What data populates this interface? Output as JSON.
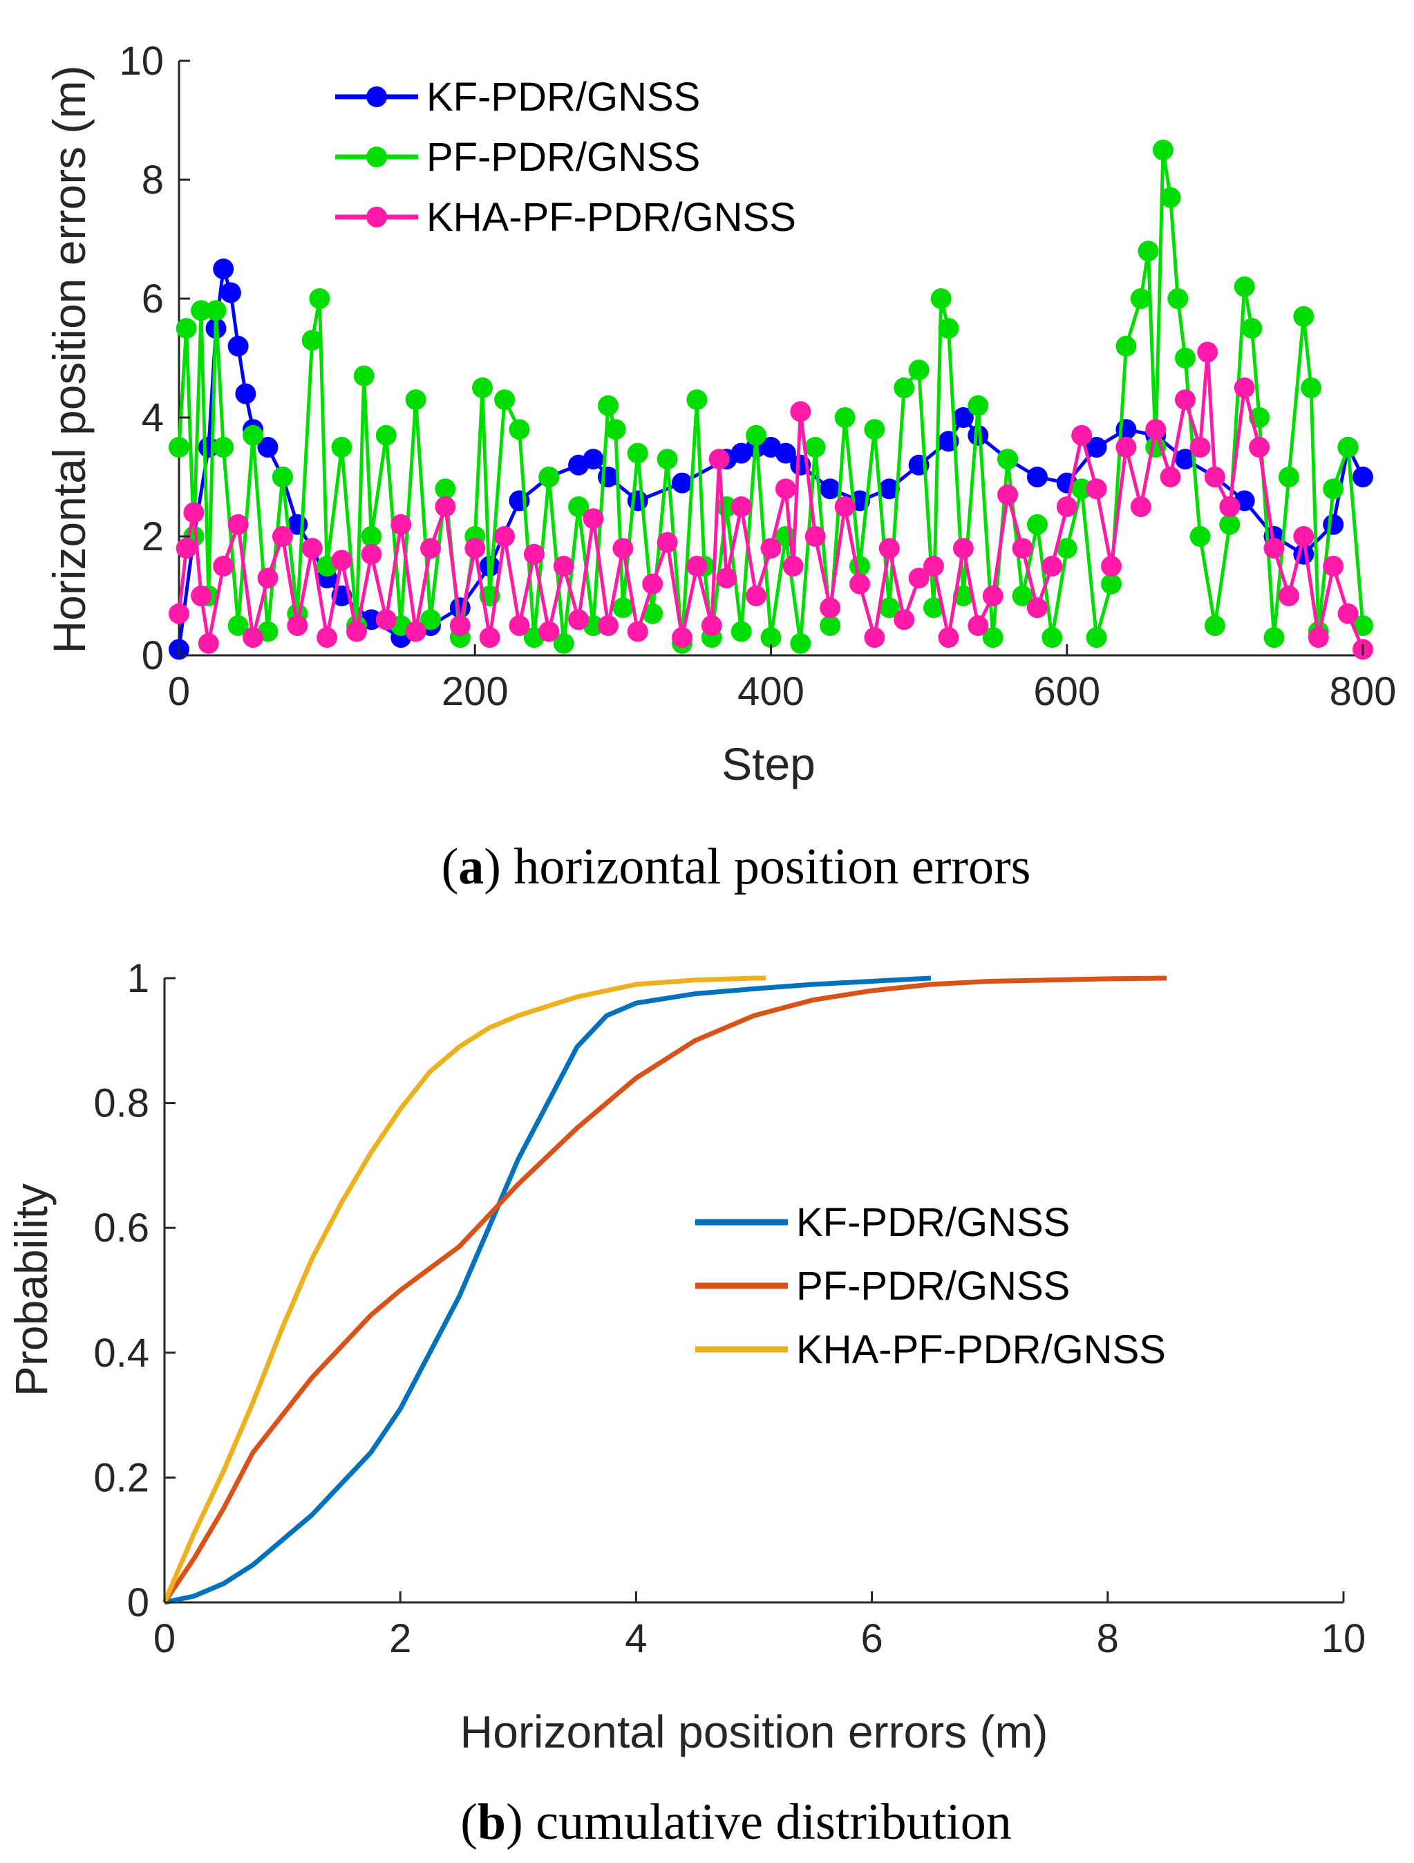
{
  "chart_data": [
    {
      "type": "line",
      "panel": "a",
      "caption_letter": "a",
      "caption_text": "horizontal position errors",
      "xlabel": "Step",
      "ylabel": "Horizontal position errors (m)",
      "xlim": [
        0,
        800
      ],
      "ylim": [
        0,
        10
      ],
      "xticks": [
        0,
        200,
        400,
        600,
        800
      ],
      "yticks": [
        0,
        2,
        4,
        6,
        8,
        10
      ],
      "grid": false,
      "legend_position": "top-left",
      "markers": "filled-circles",
      "series": [
        {
          "name": "KF-PDR/GNSS",
          "color": "#0000ff",
          "x": [
            0,
            10,
            20,
            25,
            30,
            35,
            40,
            45,
            50,
            60,
            70,
            80,
            90,
            100,
            110,
            130,
            150,
            170,
            190,
            210,
            230,
            250,
            270,
            280,
            290,
            310,
            340,
            370,
            380,
            390,
            400,
            410,
            420,
            440,
            460,
            480,
            500,
            520,
            530,
            540,
            560,
            580,
            600,
            620,
            640,
            660,
            680,
            700,
            720,
            740,
            760,
            780,
            790,
            800
          ],
          "values": [
            0.1,
            2.0,
            3.5,
            5.5,
            6.5,
            6.1,
            5.2,
            4.4,
            3.8,
            3.5,
            3.0,
            2.2,
            1.8,
            1.3,
            1.0,
            0.6,
            0.3,
            0.5,
            0.8,
            1.5,
            2.6,
            3.0,
            3.2,
            3.3,
            3.0,
            2.6,
            2.9,
            3.3,
            3.4,
            3.5,
            3.5,
            3.4,
            3.2,
            2.8,
            2.6,
            2.8,
            3.2,
            3.6,
            4.0,
            3.7,
            3.3,
            3.0,
            2.9,
            3.5,
            3.8,
            3.7,
            3.3,
            3.0,
            2.6,
            2.0,
            1.7,
            2.2,
            3.5,
            3.0
          ]
        },
        {
          "name": "PF-PDR/GNSS",
          "color": "#00dd00",
          "x": [
            0,
            5,
            10,
            15,
            20,
            25,
            30,
            40,
            50,
            60,
            70,
            80,
            90,
            95,
            100,
            110,
            120,
            125,
            130,
            140,
            150,
            160,
            170,
            180,
            190,
            200,
            205,
            210,
            220,
            230,
            240,
            250,
            260,
            270,
            280,
            290,
            295,
            300,
            310,
            320,
            330,
            340,
            350,
            355,
            360,
            370,
            380,
            390,
            400,
            410,
            420,
            430,
            440,
            450,
            460,
            470,
            480,
            490,
            500,
            510,
            515,
            520,
            530,
            540,
            550,
            560,
            570,
            580,
            590,
            600,
            610,
            620,
            630,
            640,
            650,
            655,
            660,
            665,
            670,
            675,
            680,
            690,
            700,
            710,
            720,
            725,
            730,
            740,
            750,
            760,
            765,
            770,
            780,
            790,
            800
          ],
          "values": [
            3.5,
            5.5,
            2.0,
            5.8,
            1.0,
            5.8,
            3.5,
            0.5,
            3.7,
            0.4,
            3.0,
            0.7,
            5.3,
            6.0,
            1.5,
            3.5,
            0.5,
            4.7,
            2.0,
            3.7,
            0.5,
            4.3,
            0.6,
            2.8,
            0.3,
            2.0,
            4.5,
            1.0,
            4.3,
            3.8,
            0.3,
            3.0,
            0.2,
            2.5,
            0.5,
            4.2,
            3.8,
            0.8,
            3.4,
            0.7,
            3.3,
            0.2,
            4.3,
            1.5,
            0.3,
            2.5,
            0.4,
            3.7,
            0.3,
            2.0,
            0.2,
            3.5,
            0.5,
            4.0,
            1.5,
            3.8,
            0.8,
            4.5,
            4.8,
            0.8,
            6.0,
            5.5,
            1.0,
            4.2,
            0.3,
            3.3,
            1.0,
            2.2,
            0.3,
            1.8,
            2.8,
            0.3,
            1.2,
            5.2,
            6.0,
            6.8,
            3.5,
            8.5,
            7.7,
            6.0,
            5.0,
            2.0,
            0.5,
            2.2,
            6.2,
            5.5,
            4.0,
            0.3,
            3.0,
            5.7,
            4.5,
            0.4,
            2.8,
            3.5,
            0.5
          ]
        },
        {
          "name": "KHA-PF-PDR/GNSS",
          "color": "#ff1aa8",
          "x": [
            0,
            5,
            10,
            15,
            20,
            30,
            40,
            50,
            60,
            70,
            80,
            90,
            100,
            110,
            120,
            130,
            140,
            150,
            160,
            170,
            180,
            190,
            200,
            210,
            220,
            230,
            240,
            250,
            260,
            270,
            280,
            290,
            300,
            310,
            320,
            330,
            340,
            350,
            360,
            365,
            370,
            380,
            390,
            400,
            410,
            415,
            420,
            430,
            440,
            450,
            460,
            470,
            480,
            490,
            500,
            510,
            520,
            530,
            540,
            550,
            560,
            570,
            580,
            590,
            600,
            610,
            620,
            630,
            640,
            650,
            660,
            670,
            680,
            690,
            695,
            700,
            710,
            720,
            730,
            740,
            750,
            760,
            770,
            780,
            790,
            800
          ],
          "values": [
            0.7,
            1.8,
            2.4,
            1.0,
            0.2,
            1.5,
            2.2,
            0.3,
            1.3,
            2.0,
            0.5,
            1.8,
            0.3,
            1.6,
            0.4,
            1.7,
            0.6,
            2.2,
            0.4,
            1.8,
            2.5,
            0.5,
            1.8,
            0.3,
            2.0,
            0.5,
            1.7,
            0.4,
            1.5,
            0.6,
            2.3,
            0.5,
            1.8,
            0.4,
            1.2,
            1.9,
            0.3,
            1.5,
            0.5,
            3.3,
            1.3,
            2.5,
            1.0,
            1.8,
            2.8,
            1.5,
            4.1,
            2.0,
            0.8,
            2.5,
            1.2,
            0.3,
            1.8,
            0.6,
            1.3,
            1.5,
            0.3,
            1.8,
            0.5,
            1.0,
            2.7,
            1.8,
            0.8,
            1.5,
            2.5,
            3.7,
            2.8,
            1.5,
            3.5,
            2.5,
            3.8,
            3.0,
            4.3,
            3.5,
            5.1,
            3.0,
            2.5,
            4.5,
            3.5,
            1.8,
            1.0,
            2.0,
            0.3,
            1.5,
            0.7,
            0.1
          ]
        }
      ]
    },
    {
      "type": "line",
      "panel": "b",
      "caption_letter": "b",
      "caption_text": "cumulative distribution",
      "xlabel": "Horizontal position errors (m)",
      "ylabel": "Probability",
      "xlim": [
        0,
        10
      ],
      "ylim": [
        0,
        1
      ],
      "xticks": [
        0,
        2,
        4,
        6,
        8,
        10
      ],
      "yticks": [
        0,
        0.2,
        0.4,
        0.6,
        0.8,
        1
      ],
      "grid": false,
      "legend_position": "right-center",
      "series": [
        {
          "name": "KF-PDR/GNSS",
          "color": "#0072bd",
          "x": [
            0,
            0.25,
            0.5,
            0.75,
            1.0,
            1.25,
            1.5,
            1.75,
            2.0,
            2.25,
            2.5,
            2.75,
            3.0,
            3.25,
            3.5,
            3.75,
            4.0,
            4.5,
            5.0,
            5.5,
            6.0,
            6.5
          ],
          "values": [
            0,
            0.01,
            0.03,
            0.06,
            0.1,
            0.14,
            0.19,
            0.24,
            0.31,
            0.4,
            0.49,
            0.6,
            0.71,
            0.8,
            0.89,
            0.94,
            0.96,
            0.975,
            0.983,
            0.99,
            0.995,
            1.0
          ]
        },
        {
          "name": "PF-PDR/GNSS",
          "color": "#d95319",
          "x": [
            0,
            0.25,
            0.5,
            0.75,
            1.0,
            1.25,
            1.5,
            1.75,
            2.0,
            2.5,
            3.0,
            3.5,
            4.0,
            4.5,
            5.0,
            5.5,
            6.0,
            6.5,
            7.0,
            7.5,
            8.0,
            8.5
          ],
          "values": [
            0,
            0.07,
            0.15,
            0.24,
            0.3,
            0.36,
            0.41,
            0.46,
            0.5,
            0.57,
            0.67,
            0.76,
            0.84,
            0.9,
            0.94,
            0.965,
            0.98,
            0.99,
            0.995,
            0.997,
            0.999,
            1.0
          ]
        },
        {
          "name": "KHA-PF-PDR/GNSS",
          "color": "#edb120",
          "x": [
            0,
            0.25,
            0.5,
            0.75,
            1.0,
            1.25,
            1.5,
            1.75,
            2.0,
            2.25,
            2.5,
            2.75,
            3.0,
            3.5,
            4.0,
            4.5,
            5.0,
            5.1
          ],
          "values": [
            0,
            0.11,
            0.21,
            0.32,
            0.44,
            0.55,
            0.64,
            0.72,
            0.79,
            0.85,
            0.89,
            0.92,
            0.94,
            0.97,
            0.99,
            0.997,
            1.0,
            1.0
          ]
        }
      ]
    }
  ]
}
